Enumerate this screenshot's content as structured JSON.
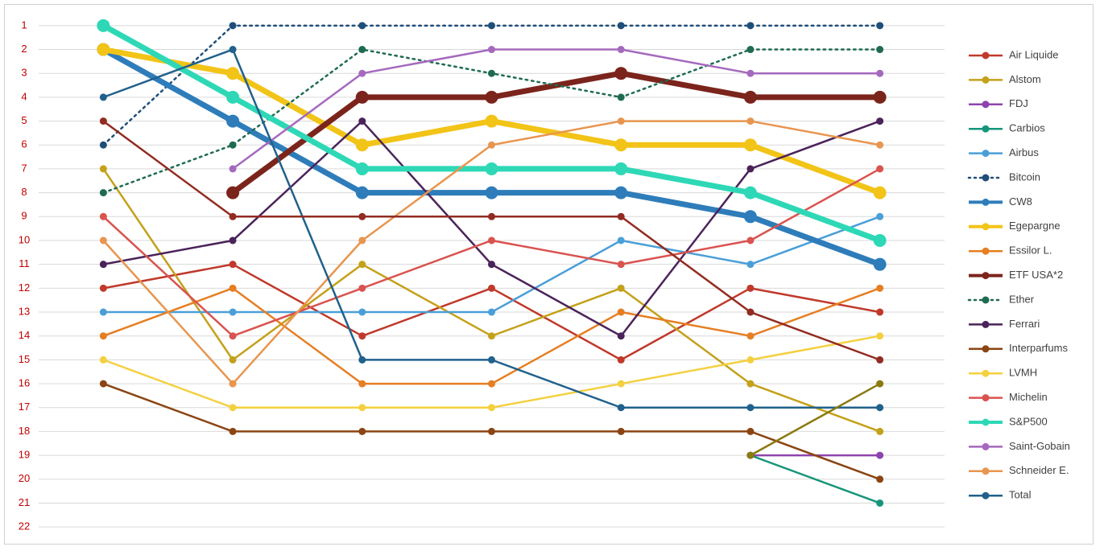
{
  "chart_data": {
    "type": "line",
    "categories": [
      null,
      null,
      null,
      null,
      null,
      null,
      null
    ],
    "ylim": [
      22.5,
      0.5
    ],
    "yticks": [
      1,
      2,
      3,
      4,
      5,
      6,
      7,
      8,
      9,
      10,
      11,
      12,
      13,
      14,
      15,
      16,
      17,
      18,
      19,
      20,
      21,
      22
    ],
    "tick_color": "#c00000",
    "grid": true,
    "legend": "right",
    "series": [
      {
        "name": "Air Liquide",
        "color": "#c0392b",
        "values": [
          12,
          11,
          14,
          12,
          15,
          12,
          13
        ]
      },
      {
        "name": "Alstom",
        "color": "#c4a11a",
        "values": [
          7,
          15,
          11,
          14,
          12,
          16,
          18
        ]
      },
      {
        "name": "FDJ",
        "color": "#8e44ad",
        "values": [
          null,
          null,
          null,
          null,
          null,
          19,
          19
        ]
      },
      {
        "name": "Carbios",
        "color": "#17957a",
        "values": [
          null,
          null,
          null,
          null,
          null,
          19,
          21
        ]
      },
      {
        "name": "Airbus",
        "color": "#4a9fd8",
        "values": [
          13,
          13,
          13,
          13,
          10,
          11,
          9
        ]
      },
      {
        "name": "Bitcoin",
        "color": "#1f4e79",
        "dash": "dotted",
        "values": [
          6,
          1,
          1,
          1,
          1,
          1,
          1
        ]
      },
      {
        "name": "CW8",
        "color": "#2e7dba",
        "width": "thick",
        "values": [
          2,
          5,
          8,
          8,
          8,
          9,
          11
        ]
      },
      {
        "name": "Egepargne",
        "color": "#f2c417",
        "width": "thick",
        "values": [
          2,
          3,
          6,
          5,
          6,
          6,
          8
        ]
      },
      {
        "name": "Essilor L.",
        "color": "#e67e22",
        "values": [
          14,
          12,
          16,
          16,
          13,
          14,
          12
        ]
      },
      {
        "name": "ETF USA*2",
        "color": "#7b241c",
        "width": "thick",
        "values": [
          null,
          8,
          4,
          4,
          3,
          4,
          4
        ]
      },
      {
        "name": "Ether",
        "color": "#1e6b52",
        "dash": "dotted",
        "values": [
          8,
          6,
          2,
          3,
          4,
          2,
          2
        ]
      },
      {
        "name": "Ferrari",
        "color": "#4a235a",
        "values": [
          11,
          10,
          5,
          11,
          14,
          7,
          5
        ]
      },
      {
        "name": "Interparfums",
        "color": "#8b4513",
        "values": [
          16,
          18,
          18,
          18,
          18,
          18,
          20
        ]
      },
      {
        "name": "LVMH",
        "color": "#f4d03f",
        "values": [
          15,
          17,
          17,
          17,
          16,
          15,
          14
        ]
      },
      {
        "name": "Michelin",
        "color": "#d9534f",
        "values": [
          9,
          14,
          12,
          10,
          11,
          10,
          7
        ]
      },
      {
        "name": "S&P500",
        "color": "#2ed8b6",
        "width": "thick",
        "values": [
          1,
          4,
          7,
          7,
          7,
          8,
          10
        ]
      },
      {
        "name": "Saint-Gobain",
        "color": "#a569bd",
        "values": [
          null,
          7,
          3,
          2,
          2,
          3,
          3
        ]
      },
      {
        "name": "Schneider E.",
        "color": "#e8954f",
        "values": [
          10,
          16,
          10,
          6,
          5,
          5,
          6
        ]
      },
      {
        "name": "Total",
        "color": "#21618c",
        "values": [
          4,
          2,
          15,
          15,
          17,
          17,
          17
        ]
      },
      {
        "color": "#922b21",
        "values": [
          5,
          9,
          9,
          9,
          9,
          13,
          15
        ]
      },
      {
        "color": "#8a7a10",
        "values": [
          null,
          null,
          null,
          null,
          null,
          19,
          16
        ]
      }
    ]
  }
}
